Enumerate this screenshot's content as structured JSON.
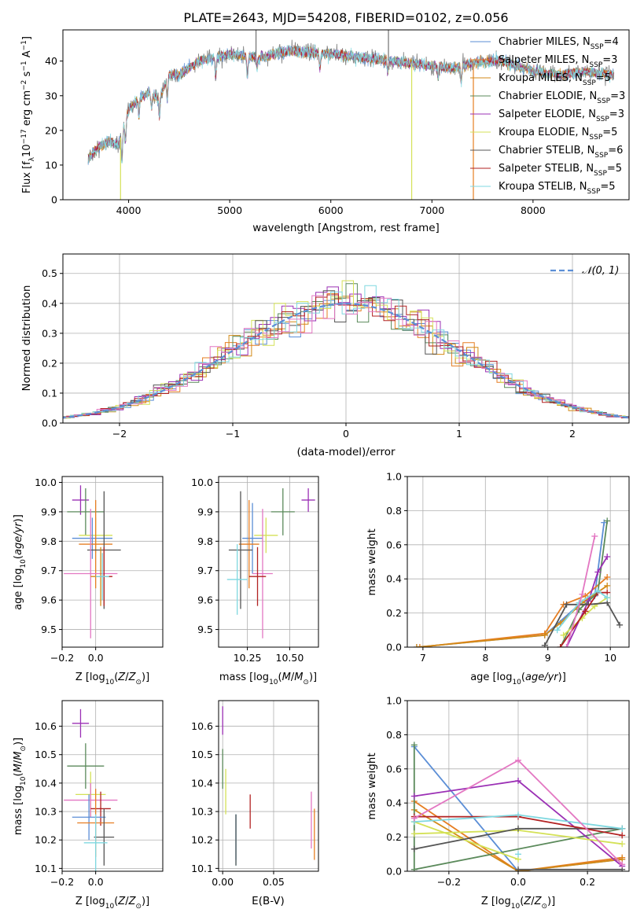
{
  "figure": {
    "title": "PLATE=2643, MJD=54208, FIBERID=0102, z=0.056"
  },
  "colors": {
    "series": [
      "#5b8ed6",
      "#e67e22",
      "#d38a17",
      "#5b8a5b",
      "#9b30b5",
      "#d4e157",
      "#555555",
      "#b22222",
      "#7fd8e0"
    ],
    "pink": "#e377c2",
    "normal_curve": "#5b8ed6",
    "grid": "#b0b0b0",
    "spectrum_dark": "#707070",
    "spectrum_cyan": "#7fd8e0",
    "spectrum_orange": "#e67e22",
    "spectrum_yellow": "#d4e157"
  },
  "chart_data": [
    {
      "id": "spectrum",
      "type": "line",
      "title": "PLATE=2643, MJD=54208, FIBERID=0102, z=0.056",
      "xlabel": "wavelength [Angstrom, rest frame]",
      "ylabel": "Flux [f_λ 10^-17 erg cm^-2 s^-1 A^-1]",
      "xlim": [
        3350,
        8950
      ],
      "ylim": [
        0,
        49
      ],
      "xticks": [
        4000,
        5000,
        6000,
        7000,
        8000
      ],
      "yticks": [
        0,
        10,
        20,
        30,
        40
      ],
      "grid": false,
      "legend_position": "top-right",
      "legend": [
        {
          "label": "Chabrier MILES, N",
          "sub": "SSP",
          "suffix": "=4"
        },
        {
          "label": "Salpeter MILES, N",
          "sub": "SSP",
          "suffix": "=3"
        },
        {
          "label": "Kroupa MILES, N",
          "sub": "SSP",
          "suffix": "=5"
        },
        {
          "label": "Chabrier ELODIE, N",
          "sub": "SSP",
          "suffix": "=3"
        },
        {
          "label": "Salpeter ELODIE, N",
          "sub": "SSP",
          "suffix": "=3"
        },
        {
          "label": "Kroupa ELODIE, N",
          "sub": "SSP",
          "suffix": "=5"
        },
        {
          "label": "Chabrier STELIB, N",
          "sub": "SSP",
          "suffix": "=6"
        },
        {
          "label": "Salpeter STELIB, N",
          "sub": "SSP",
          "suffix": "=5"
        },
        {
          "label": "Kroupa STELIB, N",
          "sub": "SSP",
          "suffix": "=5"
        }
      ],
      "continuum": {
        "x": [
          3600,
          3700,
          3800,
          3900,
          4000,
          4100,
          4200,
          4300,
          4400,
          4500,
          4700,
          5000,
          5300,
          5600,
          6000,
          6300,
          6600,
          6900,
          7200,
          7500,
          7700,
          8000,
          8300,
          8500,
          8800
        ],
        "y": [
          12,
          15,
          17,
          16,
          26,
          29,
          31,
          29,
          36,
          36,
          40,
          42,
          41,
          43,
          42,
          41,
          40,
          39,
          38,
          40,
          40,
          37,
          36,
          37,
          36
        ]
      },
      "absorption_dips": [
        [
          3934,
          8
        ],
        [
          3969,
          6
        ],
        [
          4102,
          5
        ],
        [
          4227,
          4
        ],
        [
          4305,
          5
        ],
        [
          4383,
          6
        ],
        [
          4861,
          6
        ],
        [
          5175,
          6
        ],
        [
          5270,
          3
        ],
        [
          5892,
          4
        ],
        [
          6563,
          3
        ],
        [
          7060,
          3
        ],
        [
          7290,
          5
        ]
      ],
      "spikes": [
        {
          "x": 3920,
          "y_min": 0,
          "color": "spectrum_yellow"
        },
        {
          "x": 5260,
          "y_max": 49,
          "color": "spectrum_dark"
        },
        {
          "x": 6570,
          "y_max": 49,
          "color": "spectrum_dark"
        },
        {
          "x": 6800,
          "y_min": 0,
          "color": "spectrum_yellow"
        },
        {
          "x": 7410,
          "y_min": 0,
          "color": "spectrum_orange"
        }
      ]
    },
    {
      "id": "residuals",
      "type": "histogram",
      "xlabel": "(data-model)/error",
      "ylabel": "Normed distribution",
      "xlim": [
        -2.5,
        2.5
      ],
      "ylim": [
        0,
        0.565
      ],
      "xticks": [
        -2,
        -1,
        0,
        1,
        2
      ],
      "yticks": [
        0.0,
        0.1,
        0.2,
        0.3,
        0.4,
        0.5
      ],
      "grid": true,
      "legend_position": "top-right",
      "normal_label": "𝒩(0, 1)",
      "bin_width": 0.1
    },
    {
      "id": "age-vs-Z",
      "type": "scatter",
      "xlabel": "Z [log10(Z/Z⊙)]",
      "ylabel": "age  [log10(age/yr)]",
      "xlim": [
        -0.2,
        0.4
      ],
      "ylim": [
        9.44,
        10.02
      ],
      "xticks": [
        -0.2,
        0.0
      ],
      "yticks": [
        9.5,
        9.6,
        9.7,
        9.8,
        9.9,
        10.0
      ],
      "grid": true,
      "points": [
        {
          "x": -0.09,
          "y": 9.94,
          "xerr": 0.05,
          "yerr": 0.05,
          "c": 4
        },
        {
          "x": -0.06,
          "y": 9.9,
          "xerr": 0.11,
          "yerr": 0.08,
          "c": 3
        },
        {
          "x": 0.0,
          "y": 9.82,
          "xerr": 0.1,
          "yerr": 0.06,
          "c": 5
        },
        {
          "x": -0.02,
          "y": 9.81,
          "xerr": 0.12,
          "yerr": 0.07,
          "c": 0
        },
        {
          "x": 0.0,
          "y": 9.79,
          "xerr": 0.1,
          "yerr": 0.15,
          "c": 1
        },
        {
          "x": 0.05,
          "y": 9.77,
          "xerr": 0.1,
          "yerr": 0.2,
          "c": 6
        },
        {
          "x": -0.03,
          "y": 9.69,
          "xerr": 0.16,
          "yerr": 0.22,
          "c": "pink"
        },
        {
          "x": 0.03,
          "y": 9.68,
          "xerr": 0.06,
          "yerr": 0.1,
          "c": 2
        },
        {
          "x": 0.05,
          "y": 9.68,
          "xerr": 0.05,
          "yerr": 0.1,
          "c": 7
        },
        {
          "x": 0.04,
          "y": 9.68,
          "xerr": 0.04,
          "yerr": 0.08,
          "c": 8
        }
      ]
    },
    {
      "id": "age-vs-mass",
      "type": "scatter",
      "xlabel": "mass [log10(M/M⊙)]",
      "ylabel": "",
      "xlim": [
        10.08,
        10.67
      ],
      "ylim": [
        9.44,
        10.02
      ],
      "xticks": [
        10.25,
        10.5
      ],
      "yticks": [
        9.5,
        9.6,
        9.7,
        9.8,
        9.9,
        10.0
      ],
      "grid": true,
      "points": [
        {
          "x": 10.61,
          "y": 9.94,
          "xerr": 0.04,
          "yerr": 0.04,
          "c": 4
        },
        {
          "x": 10.46,
          "y": 9.9,
          "xerr": 0.07,
          "yerr": 0.08,
          "c": 3
        },
        {
          "x": 10.36,
          "y": 9.82,
          "xerr": 0.07,
          "yerr": 0.06,
          "c": 5
        },
        {
          "x": 10.28,
          "y": 9.81,
          "xerr": 0.06,
          "yerr": 0.12,
          "c": 0
        },
        {
          "x": 10.26,
          "y": 9.79,
          "xerr": 0.06,
          "yerr": 0.15,
          "c": 1
        },
        {
          "x": 10.21,
          "y": 9.77,
          "xerr": 0.07,
          "yerr": 0.2,
          "c": 6
        },
        {
          "x": 10.34,
          "y": 9.69,
          "xerr": 0.06,
          "yerr": 0.22,
          "c": "pink"
        },
        {
          "x": 10.31,
          "y": 9.68,
          "xerr": 0.05,
          "yerr": 0.1,
          "c": 7
        },
        {
          "x": 10.19,
          "y": 9.67,
          "xerr": 0.06,
          "yerr": 0.12,
          "c": 8
        }
      ]
    },
    {
      "id": "massweight-vs-age",
      "type": "line",
      "xlabel": "age  [log10(age/yr)]",
      "ylabel": "mass weight",
      "xlim": [
        6.75,
        10.3
      ],
      "ylim": [
        0,
        1.0
      ],
      "xticks": [
        7,
        8,
        9,
        10
      ],
      "yticks": [
        0.0,
        0.2,
        0.4,
        0.6,
        0.8,
        1.0
      ],
      "grid": true,
      "series": [
        {
          "c": 0,
          "x": [
            6.9,
            8.95,
            9.5,
            9.75,
            9.9
          ],
          "y": [
            0.0,
            0.07,
            0.25,
            0.3,
            0.73
          ]
        },
        {
          "c": 1,
          "x": [
            6.95,
            8.95,
            9.25,
            9.6,
            9.95
          ],
          "y": [
            0.0,
            0.08,
            0.25,
            0.3,
            0.41
          ]
        },
        {
          "c": 2,
          "x": [
            6.9,
            8.95,
            9.2,
            9.55,
            9.95
          ],
          "y": [
            0.0,
            0.07,
            0.14,
            0.26,
            0.36
          ]
        },
        {
          "c": 3,
          "x": [
            9.2,
            9.5,
            9.8,
            9.95
          ],
          "y": [
            0.0,
            0.22,
            0.32,
            0.74
          ]
        },
        {
          "c": 4,
          "x": [
            9.3,
            9.65,
            9.8,
            9.95
          ],
          "y": [
            0.0,
            0.27,
            0.44,
            0.53
          ]
        },
        {
          "c": 5,
          "x": [
            9.25,
            9.55,
            9.75,
            9.95
          ],
          "y": [
            0.07,
            0.17,
            0.24,
            0.29
          ]
        },
        {
          "c": 6,
          "x": [
            8.95,
            9.3,
            9.65,
            9.95,
            10.15
          ],
          "y": [
            0.01,
            0.25,
            0.25,
            0.26,
            0.13
          ]
        },
        {
          "c": 7,
          "x": [
            9.2,
            9.6,
            9.8,
            9.95
          ],
          "y": [
            0.0,
            0.21,
            0.32,
            0.32
          ]
        },
        {
          "c": 8,
          "x": [
            9.15,
            9.5,
            9.8,
            9.95
          ],
          "y": [
            0.1,
            0.26,
            0.33,
            0.29
          ]
        },
        {
          "c": "pink",
          "x": [
            9.3,
            9.55,
            9.75
          ],
          "y": [
            0.0,
            0.31,
            0.65
          ]
        }
      ]
    },
    {
      "id": "mass-vs-Z",
      "type": "scatter",
      "xlabel": "Z [log10(Z/Z⊙)]",
      "ylabel": "mass [log10(M/M⊙)]",
      "xlim": [
        -0.2,
        0.4
      ],
      "ylim": [
        10.09,
        10.69
      ],
      "xticks": [
        -0.2,
        0.0
      ],
      "yticks": [
        10.1,
        10.2,
        10.3,
        10.4,
        10.5,
        10.6
      ],
      "grid": true,
      "points": [
        {
          "x": -0.09,
          "y": 10.61,
          "xerr": 0.05,
          "yerr": 0.05,
          "c": 4
        },
        {
          "x": -0.06,
          "y": 10.46,
          "xerr": 0.11,
          "yerr": 0.08,
          "c": 3
        },
        {
          "x": -0.03,
          "y": 10.36,
          "xerr": 0.09,
          "yerr": 0.08,
          "c": 5
        },
        {
          "x": -0.03,
          "y": 10.34,
          "xerr": 0.16,
          "yerr": 0.06,
          "c": "pink"
        },
        {
          "x": 0.03,
          "y": 10.31,
          "xerr": 0.06,
          "yerr": 0.06,
          "c": 7
        },
        {
          "x": -0.04,
          "y": 10.28,
          "xerr": 0.1,
          "yerr": 0.08,
          "c": 0
        },
        {
          "x": 0.0,
          "y": 10.26,
          "xerr": 0.11,
          "yerr": 0.12,
          "c": 1
        },
        {
          "x": 0.05,
          "y": 10.21,
          "xerr": 0.06,
          "yerr": 0.1,
          "c": 6
        },
        {
          "x": 0.0,
          "y": 10.19,
          "xerr": 0.07,
          "yerr": 0.1,
          "c": 8
        }
      ]
    },
    {
      "id": "mass-vs-ebv",
      "type": "scatter",
      "xlabel": "E(B-V)",
      "ylabel": "",
      "xlim": [
        -0.004,
        0.094
      ],
      "ylim": [
        10.09,
        10.69
      ],
      "xticks": [
        0.0,
        0.05
      ],
      "yticks": [
        10.1,
        10.2,
        10.3,
        10.4,
        10.5,
        10.6
      ],
      "grid": true,
      "points": [
        {
          "x": 0.0,
          "y": 10.62,
          "yerr": 0.05,
          "c": 4
        },
        {
          "x": 0.0,
          "y": 10.45,
          "yerr": 0.07,
          "c": 3
        },
        {
          "x": 0.003,
          "y": 10.37,
          "yerr": 0.08,
          "c": 5
        },
        {
          "x": 0.013,
          "y": 10.21,
          "yerr": 0.08,
          "c": 0
        },
        {
          "x": 0.013,
          "y": 10.2,
          "yerr": 0.09,
          "c": 8
        },
        {
          "x": 0.013,
          "y": 10.2,
          "yerr": 0.09,
          "c": 6
        },
        {
          "x": 0.027,
          "y": 10.3,
          "yerr": 0.06,
          "c": 7
        },
        {
          "x": 0.087,
          "y": 10.27,
          "yerr": 0.1,
          "c": "pink"
        },
        {
          "x": 0.09,
          "y": 10.22,
          "yerr": 0.09,
          "c": 1
        }
      ]
    },
    {
      "id": "massweight-vs-Z",
      "type": "line",
      "xlabel": "Z [log10(Z/Z⊙)]",
      "ylabel": "mass weight",
      "xlim": [
        -0.32,
        0.32
      ],
      "ylim": [
        0,
        1.0
      ],
      "xticks": [
        -0.2,
        0.0,
        0.2
      ],
      "yticks": [
        0.0,
        0.2,
        0.4,
        0.6,
        0.8,
        1.0
      ],
      "grid": true,
      "series": [
        {
          "c": 0,
          "x": [
            -0.3,
            0.0,
            0.3
          ],
          "y": [
            0.73,
            0.0,
            0.07
          ]
        },
        {
          "c": 1,
          "x": [
            -0.3,
            0.0,
            0.3
          ],
          "y": [
            0.41,
            0.0,
            0.08
          ]
        },
        {
          "c": 2,
          "x": [
            -0.3,
            0.0,
            0.3
          ],
          "y": [
            0.36,
            0.0,
            0.07
          ]
        },
        {
          "c": 3,
          "x": [
            -0.3,
            -0.3,
            0.3
          ],
          "y": [
            0.74,
            0.01,
            0.25
          ]
        },
        {
          "c": 4,
          "x": [
            -0.3,
            0.0,
            0.3
          ],
          "y": [
            0.44,
            0.53,
            0.03
          ]
        },
        {
          "c": 5,
          "x": [
            -0.3,
            0.0,
            0.3
          ],
          "y": [
            0.22,
            0.24,
            0.16
          ]
        },
        {
          "c": 5,
          "x": [
            -0.3,
            0.0
          ],
          "y": [
            0.29,
            0.07
          ]
        },
        {
          "c": 6,
          "x": [
            -0.3,
            0.0,
            0.3
          ],
          "y": [
            0.13,
            0.25,
            0.25
          ]
        },
        {
          "c": 6,
          "x": [
            0.0,
            0.3
          ],
          "y": [
            0.01,
            0.01
          ]
        },
        {
          "c": 7,
          "x": [
            -0.3,
            0.0,
            0.3
          ],
          "y": [
            0.32,
            0.32,
            0.21
          ]
        },
        {
          "c": 8,
          "x": [
            -0.3,
            0.0,
            0.3
          ],
          "y": [
            0.29,
            0.33,
            0.25
          ]
        },
        {
          "c": 8,
          "x": [
            0.0
          ],
          "y": [
            0.1
          ]
        },
        {
          "c": "pink",
          "x": [
            -0.3,
            0.0,
            0.3
          ],
          "y": [
            0.31,
            0.65,
            0.04
          ]
        }
      ]
    }
  ]
}
